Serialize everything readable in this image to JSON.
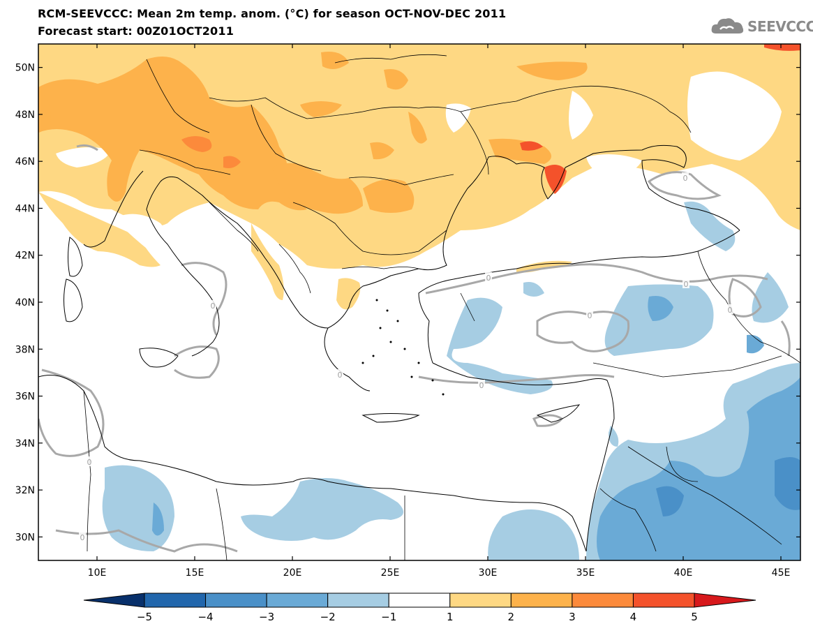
{
  "header": {
    "title": "RCM-SEEVCCC: Mean 2m temp. anom. (°C) for season OCT-NOV-DEC 2011",
    "subtitle": "Forecast start: 00Z01OCT2011",
    "logo_text": "SEEVCCC"
  },
  "map": {
    "lon_range": [
      7,
      46
    ],
    "lat_range": [
      29,
      51
    ],
    "lat_ticks": [
      {
        "value": 50,
        "label": "50N"
      },
      {
        "value": 48,
        "label": "48N"
      },
      {
        "value": 46,
        "label": "46N"
      },
      {
        "value": 44,
        "label": "44N"
      },
      {
        "value": 42,
        "label": "42N"
      },
      {
        "value": 40,
        "label": "40N"
      },
      {
        "value": 38,
        "label": "38N"
      },
      {
        "value": 36,
        "label": "36N"
      },
      {
        "value": 34,
        "label": "34N"
      },
      {
        "value": 32,
        "label": "32N"
      },
      {
        "value": 30,
        "label": "30N"
      }
    ],
    "lon_ticks": [
      {
        "value": 10,
        "label": "10E"
      },
      {
        "value": 15,
        "label": "15E"
      },
      {
        "value": 20,
        "label": "20E"
      },
      {
        "value": 25,
        "label": "25E"
      },
      {
        "value": 30,
        "label": "30E"
      },
      {
        "value": 35,
        "label": "35E"
      },
      {
        "value": 40,
        "label": "40E"
      },
      {
        "value": 45,
        "label": "45E"
      }
    ],
    "contour_label": "0"
  },
  "colorbar": {
    "colors": [
      "#08306b",
      "#2166ac",
      "#4a90c8",
      "#6aaad6",
      "#a6cde3",
      "#ffffff",
      "#fed883",
      "#fdb24b",
      "#fc8a3b",
      "#f4522b",
      "#d7191c"
    ],
    "labels": [
      "-5",
      "-4",
      "-3",
      "-2",
      "-1",
      "1",
      "2",
      "3",
      "4",
      "5"
    ]
  },
  "colors": {
    "orange_light": "#fed883",
    "orange_mid": "#fdb24b",
    "orange_dark": "#fc8a3b",
    "red": "#f4522b",
    "blue_light": "#a6cde3",
    "blue_mid": "#6aaad6",
    "blue_dark": "#4a90c8",
    "zero_contour": "#a8a8a8"
  }
}
